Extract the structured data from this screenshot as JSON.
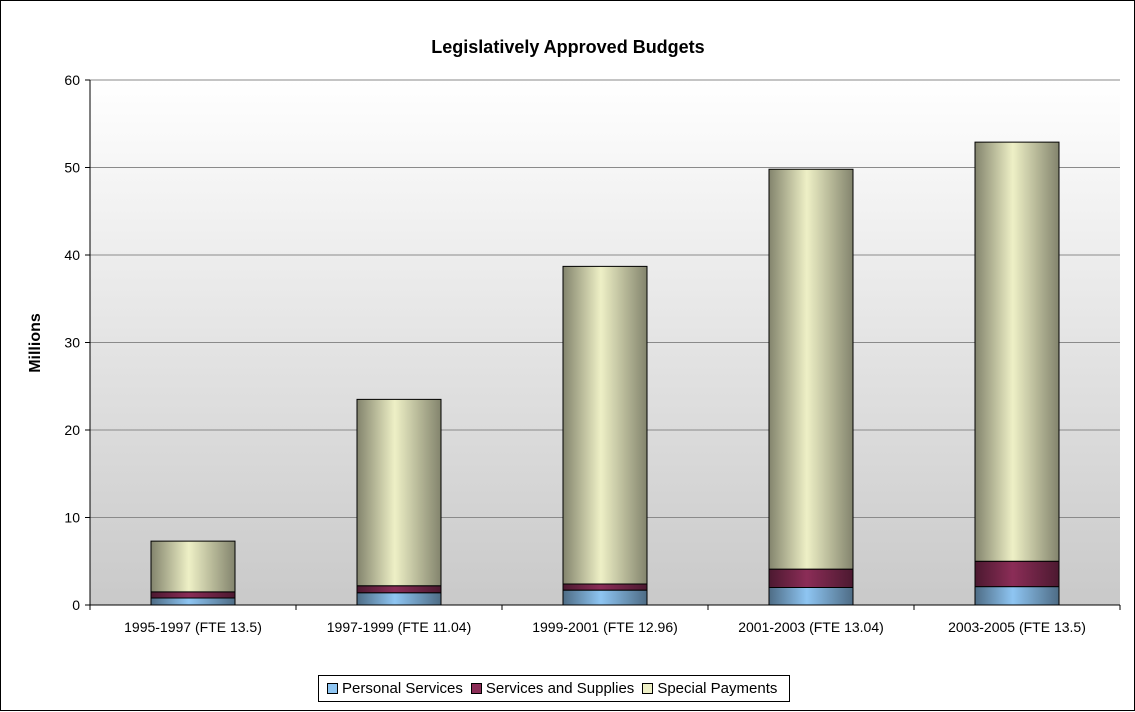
{
  "chart_data": {
    "type": "bar",
    "stacked": true,
    "title": "Legislatively Approved Budgets",
    "xlabel": "",
    "ylabel": "Millions",
    "ylim": [
      0,
      60
    ],
    "yticks": [
      "0",
      "10",
      "20",
      "30",
      "40",
      "50",
      "60"
    ],
    "grid": true,
    "legend_position": "bottom",
    "categories": [
      "1995-1997 (FTE 13.5)",
      "1997-1999 (FTE 11.04)",
      "1999-2001 (FTE 12.96)",
      "2001-2003 (FTE 13.04)",
      "2003-2005 (FTE 13.5)"
    ],
    "series": [
      {
        "name": "Personal Services",
        "color": "#8EC5F2",
        "values": [
          0.8,
          1.4,
          1.7,
          2.0,
          2.1
        ]
      },
      {
        "name": "Services and Supplies",
        "color": "#8B2D57",
        "values": [
          0.7,
          0.8,
          0.7,
          2.1,
          2.9
        ]
      },
      {
        "name": "Special Payments",
        "color": "#EEF0C6",
        "values": [
          5.8,
          21.3,
          36.3,
          45.7,
          47.9
        ]
      }
    ]
  }
}
